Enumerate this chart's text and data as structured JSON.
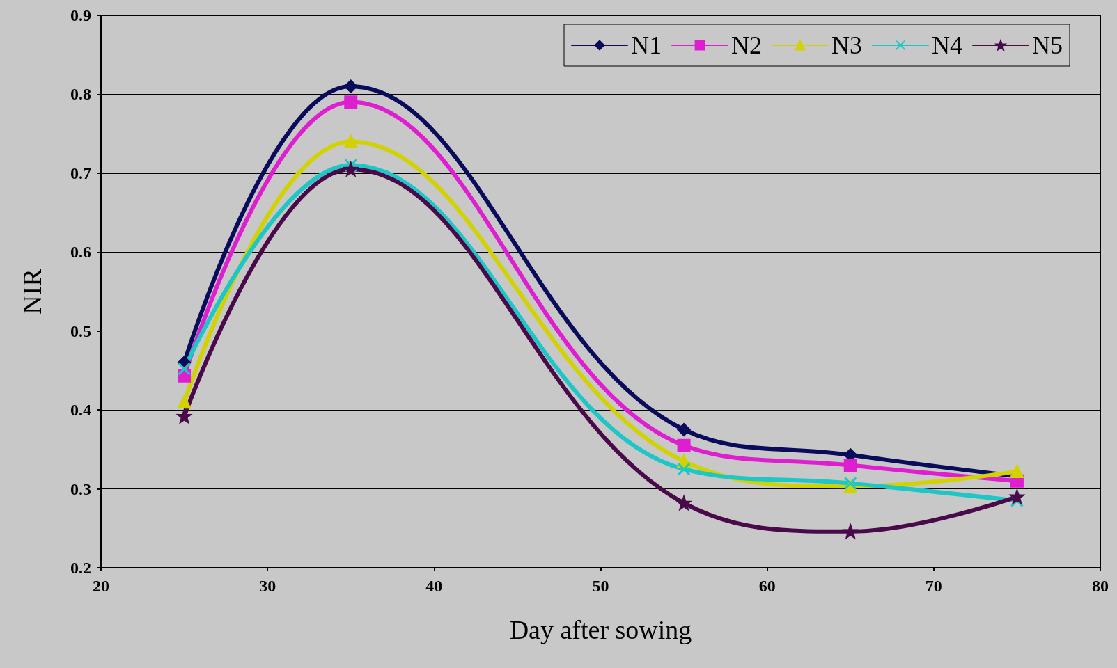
{
  "chart_data": {
    "type": "line",
    "xlabel": "Day after sowing",
    "ylabel": "NIR",
    "x": [
      25,
      35,
      55,
      65,
      75
    ],
    "xlim": [
      20,
      80
    ],
    "xticks": [
      20,
      30,
      40,
      50,
      60,
      70,
      80
    ],
    "ylim": [
      0.2,
      0.9
    ],
    "yticks": [
      0.2,
      0.3,
      0.4,
      0.5,
      0.6,
      0.7,
      0.8,
      0.9
    ],
    "grid": "y",
    "legend": "top right",
    "line_style": "solid",
    "series": [
      {
        "name": "N1",
        "color": "#0b0b5c",
        "marker": "diamond",
        "values": [
          0.46,
          0.81,
          0.375,
          0.343,
          0.316
        ]
      },
      {
        "name": "N2",
        "color": "#dd1fd0",
        "marker": "square",
        "values": [
          0.443,
          0.79,
          0.355,
          0.33,
          0.31
        ]
      },
      {
        "name": "N3",
        "color": "#d2d200",
        "marker": "triangle",
        "values": [
          0.41,
          0.74,
          0.335,
          0.303,
          0.322
        ]
      },
      {
        "name": "N4",
        "color": "#1fc6c6",
        "marker": "cross",
        "values": [
          0.452,
          0.71,
          0.325,
          0.307,
          0.285
        ]
      },
      {
        "name": "N5",
        "color": "#4a0a4a",
        "marker": "star",
        "values": [
          0.392,
          0.705,
          0.282,
          0.246,
          0.29
        ]
      }
    ]
  }
}
